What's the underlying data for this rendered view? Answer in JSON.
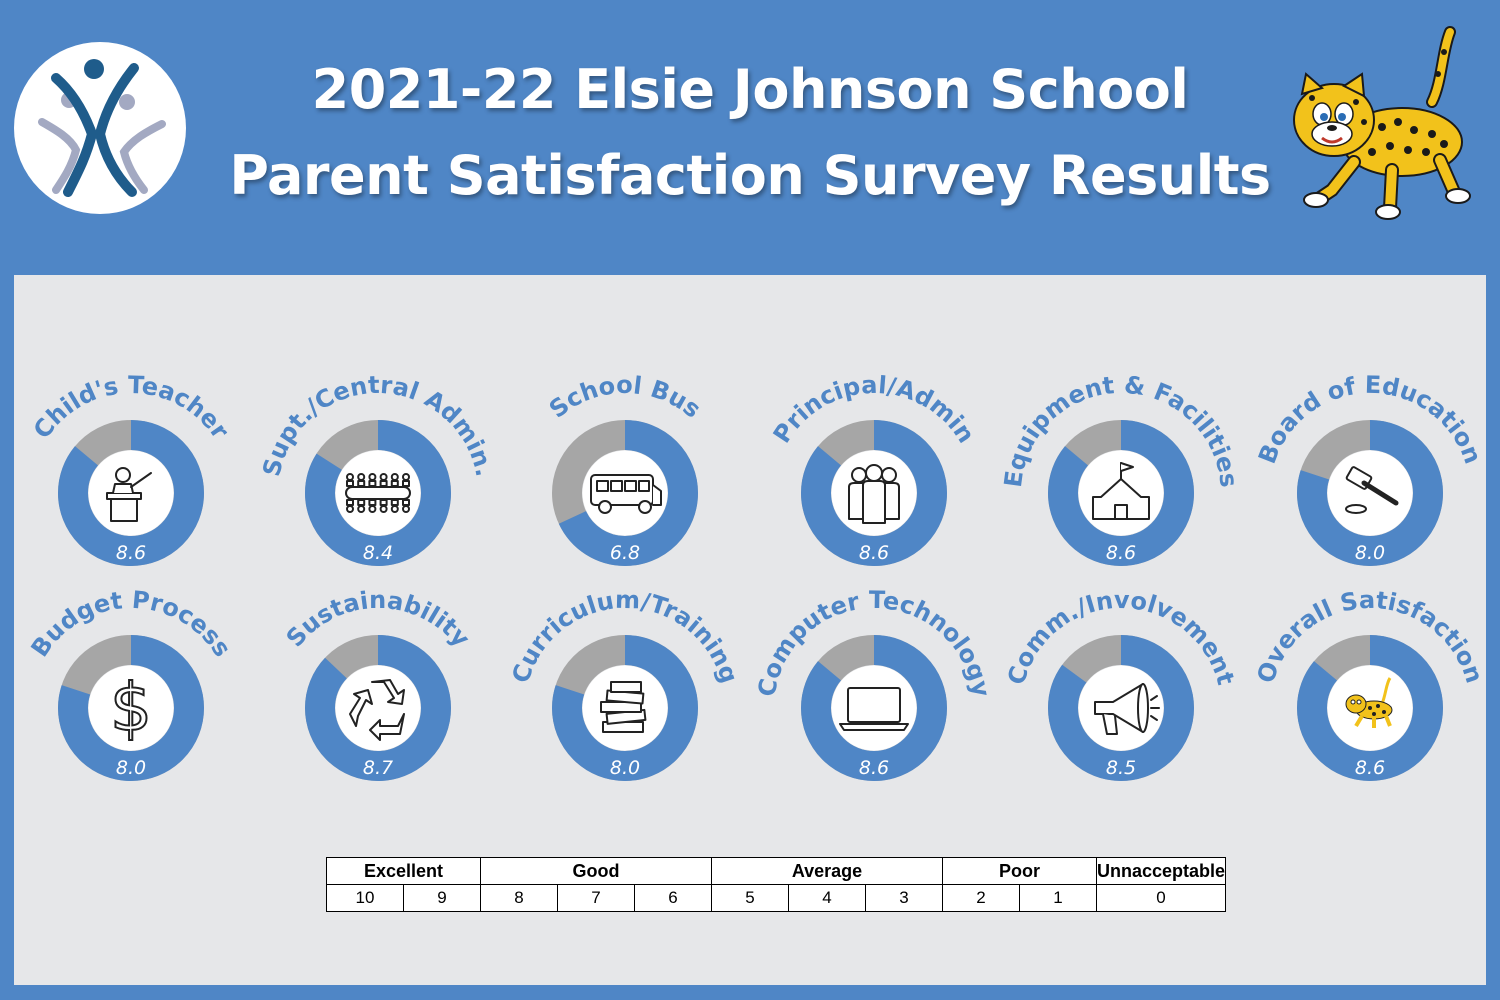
{
  "header": {
    "title_line1": "2021-22 Elsie Johnson School",
    "title_line2": "Parent Satisfaction Survey Results"
  },
  "colors": {
    "accent": "#4f86c6",
    "remainder": "#a6a6a6",
    "panel": "#e6e7e9"
  },
  "chart_data": {
    "type": "pie",
    "max": 10,
    "items": [
      {
        "label": "Child's Teacher",
        "value": 8.6,
        "display": "8.6",
        "icon": "teacher-icon"
      },
      {
        "label": "Supt./Central Admin.",
        "value": 8.4,
        "display": "8.4",
        "icon": "conference-table-icon"
      },
      {
        "label": "School Bus",
        "value": 6.8,
        "display": "6.8",
        "icon": "school-bus-icon"
      },
      {
        "label": "Principal/Admin",
        "value": 8.6,
        "display": "8.6",
        "icon": "people-group-icon"
      },
      {
        "label": "Equipment & Facilities",
        "value": 8.6,
        "display": "8.6",
        "icon": "school-building-icon"
      },
      {
        "label": "Board of Education",
        "value": 8.0,
        "display": "8.0",
        "icon": "gavel-icon"
      },
      {
        "label": "Budget Process",
        "value": 8.0,
        "display": "8.0",
        "icon": "dollar-icon"
      },
      {
        "label": "Sustainability",
        "value": 8.7,
        "display": "8.7",
        "icon": "recycle-icon"
      },
      {
        "label": "Curriculum/Training",
        "value": 8.0,
        "display": "8.0",
        "icon": "books-icon"
      },
      {
        "label": "Computer Technology",
        "value": 8.6,
        "display": "8.6",
        "icon": "laptop-icon"
      },
      {
        "label": "Comm./Involvement",
        "value": 8.5,
        "display": "8.5",
        "icon": "megaphone-icon"
      },
      {
        "label": "Overall Satisfaction",
        "value": 8.6,
        "display": "8.6",
        "icon": "leopard-icon"
      }
    ]
  },
  "scale": {
    "categories": [
      {
        "label": "Excellent",
        "span": 2
      },
      {
        "label": "Good",
        "span": 3
      },
      {
        "label": "Average",
        "span": 3
      },
      {
        "label": "Poor",
        "span": 2
      },
      {
        "label": "Unnacceptable",
        "span": 1
      }
    ],
    "numbers": [
      "10",
      "9",
      "8",
      "7",
      "6",
      "5",
      "4",
      "3",
      "2",
      "1",
      "0"
    ]
  }
}
